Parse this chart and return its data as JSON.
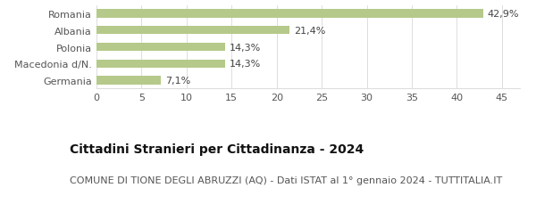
{
  "categories": [
    "Romania",
    "Albania",
    "Polonia",
    "Macedonia d/N.",
    "Germania"
  ],
  "values": [
    42.9,
    21.4,
    14.3,
    14.3,
    7.1
  ],
  "labels": [
    "42,9%",
    "21,4%",
    "14,3%",
    "14,3%",
    "7,1%"
  ],
  "bar_color": "#b5c98a",
  "xlim": [
    0,
    47
  ],
  "xticks": [
    0,
    5,
    10,
    15,
    20,
    25,
    30,
    35,
    40,
    45
  ],
  "title_bold": "Cittadini Stranieri per Cittadinanza - 2024",
  "subtitle": "COMUNE DI TIONE DEGLI ABRUZZI (AQ) - Dati ISTAT al 1° gennaio 2024 - TUTTITALIA.IT",
  "title_fontsize": 10,
  "subtitle_fontsize": 8,
  "label_fontsize": 8,
  "tick_fontsize": 8,
  "background_color": "#ffffff",
  "grid_color": "#dddddd"
}
